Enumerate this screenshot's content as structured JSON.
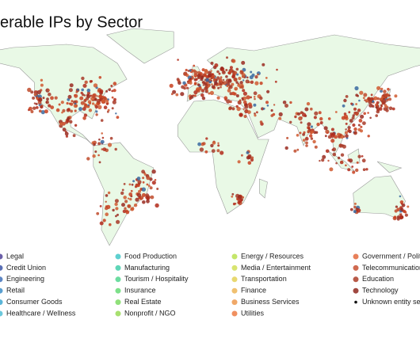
{
  "title": "erable IPs by Sector",
  "legend": [
    {
      "label": "Legal",
      "color": "#6b5fa8"
    },
    {
      "label": "Credit Union",
      "color": "#5a6fb5"
    },
    {
      "label": "Engineering",
      "color": "#5d86c4"
    },
    {
      "label": "Retail",
      "color": "#5a9fd0"
    },
    {
      "label": "Consumer Goods",
      "color": "#5ab5d8"
    },
    {
      "label": "Healthcare / Wellness",
      "color": "#6cc8dc"
    },
    {
      "label": "Food Production",
      "color": "#5fd0d0"
    },
    {
      "label": "Manufacturing",
      "color": "#5fd6b8"
    },
    {
      "label": "Tourism / Hospitality",
      "color": "#6cdca0"
    },
    {
      "label": "Insurance",
      "color": "#7de08a"
    },
    {
      "label": "Real Estate",
      "color": "#90e07a"
    },
    {
      "label": "Nonprofit / NGO",
      "color": "#a8e070"
    },
    {
      "label": "Energy / Resources",
      "color": "#c4e66a"
    },
    {
      "label": "Media / Entertainment",
      "color": "#d8e470"
    },
    {
      "label": "Transportation",
      "color": "#e8d870"
    },
    {
      "label": "Finance",
      "color": "#f0c070"
    },
    {
      "label": "Business Services",
      "color": "#f0a868"
    },
    {
      "label": "Utilities",
      "color": "#f09060"
    },
    {
      "label": "Government / Politi",
      "color": "#e8805a"
    },
    {
      "label": "Telecommunication",
      "color": "#d06a50"
    },
    {
      "label": "Education",
      "color": "#b85a48"
    },
    {
      "label": "Technology",
      "color": "#a04840"
    },
    {
      "label": "Unknown entity sec",
      "color": "#111111"
    }
  ]
}
